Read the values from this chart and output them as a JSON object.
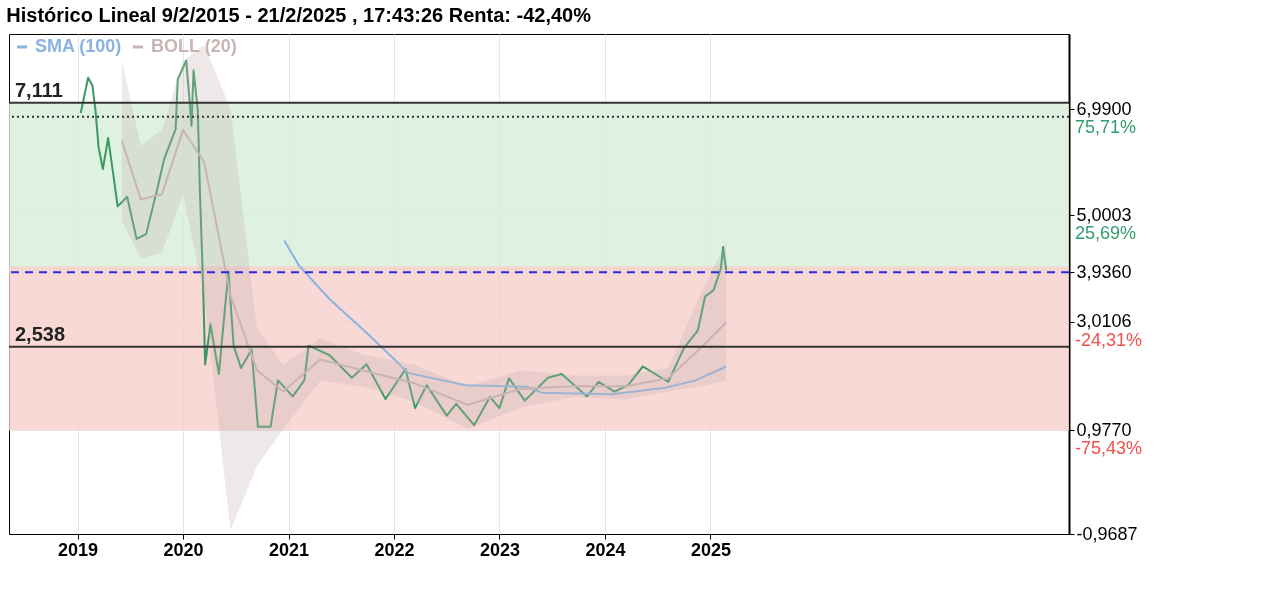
{
  "chart_data": {
    "type": "line",
    "title": "Histórico Lineal 9/2/2015 - 21/2/2025 , 17:43:26 Renta: -42,40%",
    "xlim": [
      2018.35,
      2028.4
    ],
    "xticks": [
      2019,
      2020,
      2021,
      2022,
      2023,
      2024,
      2025
    ],
    "ylim": [
      -0.9687,
      8.4
    ],
    "yticks": [
      {
        "value": 6.99,
        "label": "6,9900"
      },
      {
        "value": 5.0003,
        "label": "5,0003"
      },
      {
        "value": 3.936,
        "label": "3,9360"
      },
      {
        "value": 3.0106,
        "label": "3,0106"
      },
      {
        "value": 0.977,
        "label": "0,9770"
      },
      {
        "value": -0.9687,
        "label": "-0,9687"
      }
    ],
    "grid": true,
    "legend": "top left",
    "line_style": "solid",
    "series": [
      {
        "color": "#3a9a63",
        "x": [
          2019.03,
          2019.1,
          2019.14,
          2019.17,
          2019.2,
          2019.24,
          2019.29,
          2019.34,
          2019.38,
          2019.47,
          2019.56,
          2019.65,
          2019.75,
          2019.82,
          2019.93,
          2019.95,
          2020.03,
          2020.06,
          2020.08,
          2020.1,
          2020.14,
          2020.16,
          2020.19,
          2020.21,
          2020.26,
          2020.34,
          2020.43,
          2020.48,
          2020.55,
          2020.65,
          2020.71,
          2020.83,
          2020.9,
          2021.04,
          2021.15,
          2021.19,
          2021.39,
          2021.6,
          2021.74,
          2021.92,
          2022.11,
          2022.2,
          2022.31,
          2022.5,
          2022.59,
          2022.76,
          2022.91,
          2023.0,
          2023.09,
          2023.24,
          2023.46,
          2023.59,
          2023.83,
          2023.94,
          2024.09,
          2024.22,
          2024.36,
          2024.6,
          2024.75,
          2024.88,
          2024.95,
          2025.03,
          2025.1,
          2025.12,
          2025.15
        ],
        "values": [
          6.92,
          7.58,
          7.44,
          6.97,
          6.27,
          5.87,
          6.45,
          5.75,
          5.17,
          5.35,
          4.56,
          4.65,
          5.45,
          6.05,
          6.62,
          7.55,
          7.9,
          7.2,
          6.68,
          7.72,
          6.97,
          5.45,
          3.71,
          2.21,
          2.96,
          2.03,
          3.95,
          2.56,
          2.14,
          2.49,
          1.04,
          1.04,
          1.91,
          1.61,
          1.91,
          2.56,
          2.38,
          1.96,
          2.21,
          1.56,
          2.12,
          1.39,
          1.82,
          1.25,
          1.47,
          1.07,
          1.6,
          1.39,
          1.95,
          1.53,
          1.96,
          2.03,
          1.61,
          1.88,
          1.7,
          1.82,
          2.17,
          1.88,
          2.52,
          2.84,
          3.48,
          3.6,
          4.01,
          4.41,
          3.97
        ]
      },
      {
        "name": "SMA (100)",
        "color": "#8ab4e0",
        "x": [
          2020.96,
          2021.1,
          2021.39,
          2021.72,
          2022.0,
          2022.13,
          2022.68,
          2023.26,
          2023.4,
          2024.07,
          2024.57,
          2024.86,
          2025.15
        ],
        "values": [
          4.53,
          4.06,
          3.43,
          2.84,
          2.31,
          2.05,
          1.82,
          1.79,
          1.68,
          1.65,
          1.77,
          1.91,
          2.17
        ]
      },
      {
        "name": "BOLL (20)",
        "color": "#c8b4b4",
        "x": [
          2019.42,
          2019.6,
          2019.8,
          2020.0,
          2020.2,
          2020.45,
          2020.7,
          2020.95,
          2021.3,
          2021.7,
          2022.2,
          2022.7,
          2023.2,
          2023.7,
          2024.2,
          2024.6,
          2024.9,
          2025.15
        ],
        "values": [
          6.4,
          5.3,
          5.4,
          6.6,
          6.0,
          3.5,
          2.1,
          1.7,
          2.3,
          2.1,
          1.85,
          1.45,
          1.75,
          1.8,
          1.8,
          1.95,
          2.5,
          3.0
        ],
        "lower": [
          4.9,
          4.2,
          4.3,
          5.4,
          3.5,
          -0.9,
          0.3,
          1.0,
          1.9,
          1.8,
          1.5,
          1.0,
          1.4,
          1.6,
          1.55,
          1.7,
          1.8,
          1.9
        ],
        "upper": [
          7.9,
          6.3,
          6.6,
          7.9,
          8.2,
          7.0,
          2.9,
          2.2,
          2.7,
          2.4,
          2.2,
          1.8,
          2.1,
          2.0,
          2.0,
          2.15,
          3.5,
          4.5
        ]
      }
    ],
    "bands": [
      {
        "axis": "y",
        "from": 3.96,
        "to": 7.111,
        "color": "#d7eed8"
      },
      {
        "axis": "y",
        "from": 0.977,
        "to": 4.05,
        "color": "#f6cfcc"
      }
    ],
    "ref_lines": [
      {
        "axis": "y",
        "value": 7.111,
        "label": "7,111",
        "color": "#333333",
        "line_style": "solid"
      },
      {
        "axis": "y",
        "value": 6.85,
        "color": "#333333",
        "line_style": "dotted"
      },
      {
        "axis": "y",
        "value": 3.936,
        "color": "#2b2bdd",
        "line_style": "dashed"
      },
      {
        "axis": "y",
        "value": 2.538,
        "label": "2,538",
        "color": "#333333",
        "line_style": "solid"
      }
    ],
    "annotations": [
      "75,71%",
      "25,69%",
      "-24,31%",
      "-75,43%"
    ]
  }
}
